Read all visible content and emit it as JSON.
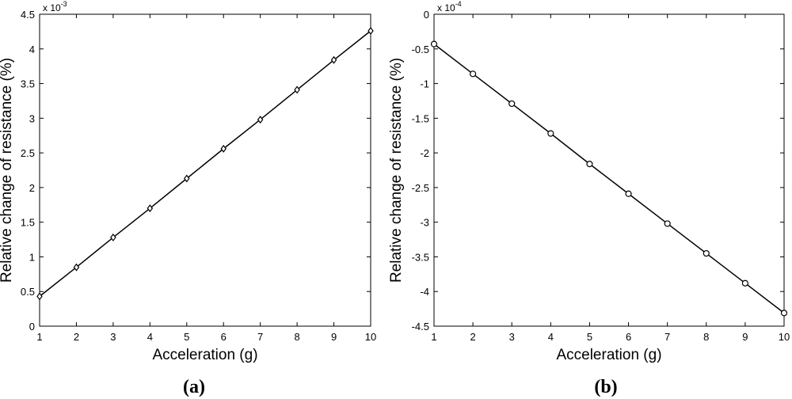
{
  "chart_data": [
    {
      "type": "line",
      "caption": "(a)",
      "xlabel": "Acceleration (g)",
      "ylabel": "Relative change of resistance (%)",
      "exponent": {
        "base": "x 10",
        "power": "-3"
      },
      "xlim": [
        1,
        10
      ],
      "ylim": [
        0,
        4.5
      ],
      "grid": false,
      "marker": "diamond",
      "color": "#000000",
      "x_ticks": [
        "1",
        "2",
        "3",
        "4",
        "5",
        "6",
        "7",
        "8",
        "9",
        "10"
      ],
      "y_ticks": [
        "0",
        "0.5",
        "1",
        "1.5",
        "2",
        "2.5",
        "3",
        "3.5",
        "4",
        "4.5"
      ],
      "x": [
        1,
        2,
        3,
        4,
        5,
        6,
        7,
        8,
        9,
        10
      ],
      "y": [
        0.43,
        0.85,
        1.28,
        1.7,
        2.13,
        2.56,
        2.98,
        3.41,
        3.84,
        4.26
      ]
    },
    {
      "type": "line",
      "caption": "(b)",
      "xlabel": "Acceleration (g)",
      "ylabel": "Relative change of resistance (%)",
      "exponent": {
        "base": "x 10",
        "power": "-4"
      },
      "xlim": [
        1,
        10
      ],
      "ylim": [
        -4.5,
        0
      ],
      "grid": false,
      "marker": "circle",
      "color": "#000000",
      "x_ticks": [
        "1",
        "2",
        "3",
        "4",
        "5",
        "6",
        "7",
        "8",
        "9",
        "10"
      ],
      "y_ticks": [
        "-4.5",
        "-4",
        "-3.5",
        "-3",
        "-2.5",
        "-2",
        "-1.5",
        "-1",
        "-0.5",
        "0"
      ],
      "x": [
        1,
        2,
        3,
        4,
        5,
        6,
        7,
        8,
        9,
        10
      ],
      "y": [
        -0.43,
        -0.86,
        -1.29,
        -1.72,
        -2.16,
        -2.59,
        -3.02,
        -3.45,
        -3.88,
        -4.31
      ]
    }
  ]
}
